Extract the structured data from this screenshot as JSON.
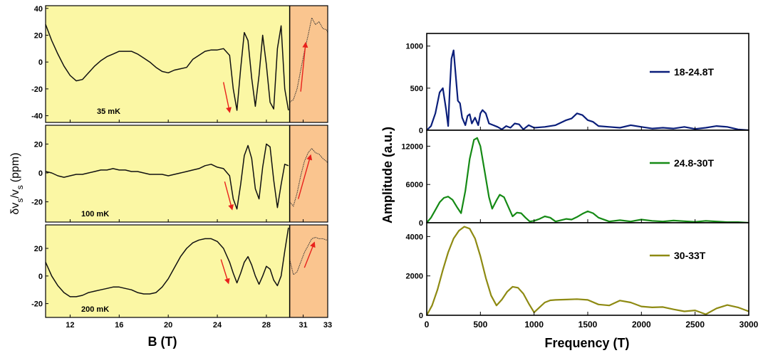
{
  "chart_data": [
    {
      "type": "line",
      "panel": "left-stack",
      "xlabel": "B (T)",
      "ylabel": "δv s /v s (ppm)",
      "ylabel_main": "δv",
      "ylabel_sub1": "s",
      "ylabel_mid": "/v",
      "ylabel_sub2": "s",
      "ylabel_tail": "(ppm)",
      "x_ticks": [
        "12",
        "16",
        "20",
        "24",
        "28",
        "31",
        "33"
      ],
      "background_colors": {
        "low_field": "#fbf7a4",
        "high_field": "#fac58f"
      },
      "shade_boundary_x": 29.9,
      "arrow_color": "#e8211c",
      "subplots": [
        {
          "annotation": "35 mK",
          "ylim": [
            -45,
            42
          ],
          "y_ticks": [
            "40",
            "20",
            "0",
            "-20",
            "-40"
          ],
          "y_tick_values": [
            40,
            20,
            0,
            -20,
            -40
          ],
          "x": [
            10.0,
            10.5,
            11.0,
            11.5,
            12.0,
            12.5,
            13.0,
            13.5,
            14.0,
            14.5,
            15.0,
            15.5,
            16.0,
            16.5,
            17.0,
            17.5,
            18.0,
            18.5,
            19.0,
            19.5,
            20.0,
            20.5,
            21.0,
            21.5,
            22.0,
            22.5,
            23.0,
            23.5,
            24.0,
            24.5,
            25.0,
            25.3,
            25.6,
            25.9,
            26.2,
            26.5,
            26.8,
            27.1,
            27.4,
            27.7,
            28.0,
            28.3,
            28.6,
            28.9,
            29.2,
            29.5,
            29.8
          ],
          "y": [
            28,
            16,
            6,
            -3,
            -10,
            -14,
            -13,
            -8,
            -3,
            1,
            4,
            6,
            8,
            8,
            8,
            6,
            3,
            0,
            -4,
            -7,
            -8,
            -6,
            -5,
            -4,
            2,
            5,
            8,
            9,
            9,
            10,
            5,
            -20,
            -36,
            -5,
            22,
            16,
            -12,
            -33,
            -10,
            20,
            -2,
            -30,
            -35,
            10,
            27,
            -20,
            -36
          ],
          "x_high": [
            29.9,
            30.2,
            30.5,
            30.8,
            31.1,
            31.4,
            31.7,
            32.0,
            32.3,
            32.6,
            32.9,
            33.0
          ],
          "y_high": [
            -30,
            -28,
            -20,
            -6,
            8,
            20,
            33,
            28,
            30,
            25,
            24,
            22
          ],
          "arrows": [
            {
              "from": [
                24.5,
                -15
              ],
              "to": [
                25.0,
                -37
              ]
            },
            {
              "from": [
                30.8,
                -22
              ],
              "to": [
                31.2,
                14
              ]
            }
          ]
        },
        {
          "annotation": "100 mK",
          "ylim": [
            -34,
            33
          ],
          "y_ticks": [
            "20",
            "0",
            "-20"
          ],
          "y_tick_values": [
            20,
            0,
            -20
          ],
          "x": [
            10.0,
            10.5,
            11.0,
            11.5,
            12.0,
            12.5,
            13.0,
            13.5,
            14.0,
            14.5,
            15.0,
            15.5,
            16.0,
            16.5,
            17.0,
            17.5,
            18.0,
            18.5,
            19.0,
            19.5,
            20.0,
            20.5,
            21.0,
            21.5,
            22.0,
            22.5,
            23.0,
            23.5,
            24.0,
            24.5,
            25.0,
            25.3,
            25.6,
            25.9,
            26.2,
            26.5,
            26.8,
            27.1,
            27.4,
            27.7,
            28.0,
            28.3,
            28.6,
            28.9,
            29.2,
            29.5,
            29.8
          ],
          "y": [
            1,
            0,
            -2,
            -3,
            -2,
            -1,
            -1,
            0,
            1,
            2,
            2,
            3,
            2,
            2,
            1,
            1,
            0,
            -1,
            -1,
            -1,
            -2,
            -1,
            0,
            1,
            2,
            3,
            5,
            6,
            4,
            3,
            -2,
            -18,
            -25,
            -8,
            12,
            19,
            10,
            -11,
            -18,
            4,
            20,
            18,
            -5,
            -24,
            -8,
            6,
            5
          ],
          "x_high": [
            29.9,
            30.2,
            30.5,
            30.8,
            31.1,
            31.4,
            31.7,
            32.0,
            32.3,
            32.6,
            32.9,
            33.0
          ],
          "y_high": [
            -20,
            -23,
            -14,
            -2,
            8,
            14,
            17,
            14,
            13,
            10,
            8,
            7
          ],
          "arrows": [
            {
              "from": [
                24.6,
                -6
              ],
              "to": [
                25.2,
                -25
              ]
            },
            {
              "from": [
                30.6,
                -18
              ],
              "to": [
                31.6,
                12
              ]
            }
          ]
        },
        {
          "annotation": "200 mK",
          "ylim": [
            -30,
            37
          ],
          "y_ticks": [
            "20",
            "0",
            "-20"
          ],
          "y_tick_values": [
            20,
            0,
            -20
          ],
          "x": [
            10.0,
            10.5,
            11.0,
            11.5,
            12.0,
            12.5,
            13.0,
            13.5,
            14.0,
            14.5,
            15.0,
            15.5,
            16.0,
            16.5,
            17.0,
            17.5,
            18.0,
            18.5,
            19.0,
            19.5,
            20.0,
            20.5,
            21.0,
            21.5,
            22.0,
            22.5,
            23.0,
            23.5,
            24.0,
            24.5,
            25.0,
            25.3,
            25.6,
            25.9,
            26.2,
            26.5,
            26.8,
            27.1,
            27.4,
            27.7,
            28.0,
            28.3,
            28.6,
            28.9,
            29.2,
            29.5,
            29.8
          ],
          "y": [
            10,
            0,
            -7,
            -12,
            -15,
            -15,
            -14,
            -12,
            -11,
            -10,
            -9,
            -8,
            -8,
            -9,
            -10,
            -12,
            -13,
            -13,
            -12,
            -8,
            -2,
            6,
            14,
            20,
            24,
            26,
            27,
            27,
            25,
            20,
            10,
            2,
            -5,
            2,
            10,
            14,
            8,
            0,
            -6,
            0,
            7,
            5,
            -3,
            -7,
            0,
            18,
            35
          ],
          "x_high": [
            29.9,
            30.2,
            30.5,
            30.8,
            31.1,
            31.4,
            31.7,
            32.0,
            32.3,
            32.6,
            32.9,
            33.0
          ],
          "y_high": [
            12,
            1,
            3,
            10,
            17,
            22,
            27,
            28,
            27,
            27,
            26,
            26
          ],
          "arrows": [
            {
              "from": [
                24.3,
                12
              ],
              "to": [
                24.9,
                -5
              ]
            },
            {
              "from": [
                31.1,
                6
              ],
              "to": [
                31.9,
                24
              ]
            }
          ]
        }
      ]
    },
    {
      "type": "line",
      "panel": "right-stack",
      "xlabel": "Frequency (T)",
      "ylabel": "Amplitude (a.u.)",
      "xlim": [
        0,
        3000
      ],
      "x_ticks": [
        "0",
        "500",
        "1000",
        "1500",
        "2000",
        "2500",
        "3000"
      ],
      "x_tick_values": [
        0,
        500,
        1000,
        1500,
        2000,
        2500,
        3000
      ],
      "subplots": [
        {
          "legend": "18-24.8T",
          "color": "#0a1e7a",
          "ylim": [
            0,
            1150
          ],
          "y_ticks": [
            "1000",
            "500",
            "0"
          ],
          "y_tick_values": [
            1000,
            500,
            0
          ],
          "x": [
            0,
            40,
            80,
            120,
            150,
            180,
            200,
            215,
            230,
            250,
            270,
            290,
            310,
            330,
            360,
            380,
            400,
            420,
            450,
            480,
            500,
            520,
            550,
            580,
            620,
            660,
            700,
            740,
            780,
            820,
            860,
            900,
            950,
            1000,
            1100,
            1200,
            1300,
            1350,
            1400,
            1450,
            1500,
            1550,
            1600,
            1700,
            1800,
            1900,
            2000,
            2100,
            2200,
            2300,
            2400,
            2500,
            2600,
            2700,
            2800,
            2900,
            3000
          ],
          "y": [
            0,
            50,
            200,
            450,
            500,
            250,
            50,
            500,
            850,
            950,
            650,
            350,
            320,
            150,
            60,
            170,
            190,
            80,
            150,
            60,
            200,
            240,
            200,
            80,
            60,
            40,
            10,
            50,
            30,
            80,
            70,
            10,
            60,
            30,
            40,
            60,
            120,
            140,
            200,
            180,
            120,
            100,
            50,
            40,
            30,
            60,
            40,
            20,
            30,
            20,
            40,
            15,
            30,
            50,
            40,
            10,
            0
          ]
        },
        {
          "legend": "24.8-30T",
          "color": "#158a15",
          "ylim": [
            0,
            14500
          ],
          "y_ticks": [
            "12000",
            "6000",
            "0"
          ],
          "y_tick_values": [
            12000,
            6000,
            0
          ],
          "x": [
            0,
            40,
            80,
            120,
            160,
            200,
            240,
            280,
            320,
            360,
            400,
            440,
            470,
            500,
            540,
            580,
            610,
            650,
            680,
            720,
            760,
            800,
            840,
            880,
            920,
            960,
            1000,
            1050,
            1100,
            1150,
            1200,
            1250,
            1300,
            1350,
            1400,
            1450,
            1500,
            1550,
            1600,
            1700,
            1800,
            1900,
            2000,
            2100,
            2200,
            2300,
            2400,
            2500,
            2600,
            2700,
            2800,
            2900,
            3000
          ],
          "y": [
            0,
            800,
            2000,
            3200,
            3900,
            4100,
            3600,
            2500,
            1500,
            5000,
            10000,
            13000,
            13300,
            12000,
            8000,
            4000,
            2200,
            3500,
            4400,
            4000,
            2500,
            1000,
            1600,
            1500,
            800,
            200,
            300,
            600,
            1000,
            800,
            200,
            400,
            600,
            500,
            900,
            1400,
            1800,
            1500,
            800,
            200,
            400,
            200,
            500,
            300,
            200,
            350,
            250,
            150,
            300,
            200,
            100,
            100,
            0
          ]
        },
        {
          "legend": "30-33T",
          "color": "#8e8a12",
          "ylim": [
            0,
            4700
          ],
          "y_ticks": [
            "4000",
            "2000",
            "0"
          ],
          "y_tick_values": [
            4000,
            2000,
            0
          ],
          "x": [
            0,
            50,
            100,
            150,
            200,
            250,
            300,
            350,
            400,
            450,
            500,
            550,
            600,
            650,
            700,
            750,
            800,
            850,
            900,
            950,
            1000,
            1050,
            1100,
            1150,
            1200,
            1300,
            1400,
            1500,
            1600,
            1700,
            1800,
            1900,
            2000,
            2100,
            2200,
            2300,
            2400,
            2500,
            2600,
            2700,
            2800,
            2900,
            3000
          ],
          "y": [
            0,
            500,
            1300,
            2300,
            3200,
            3900,
            4300,
            4500,
            4400,
            3900,
            3000,
            1900,
            1000,
            500,
            800,
            1200,
            1450,
            1400,
            1100,
            600,
            150,
            400,
            650,
            760,
            780,
            800,
            820,
            780,
            550,
            500,
            750,
            650,
            450,
            400,
            420,
            300,
            200,
            250,
            50,
            350,
            520,
            400,
            200
          ]
        }
      ]
    }
  ]
}
